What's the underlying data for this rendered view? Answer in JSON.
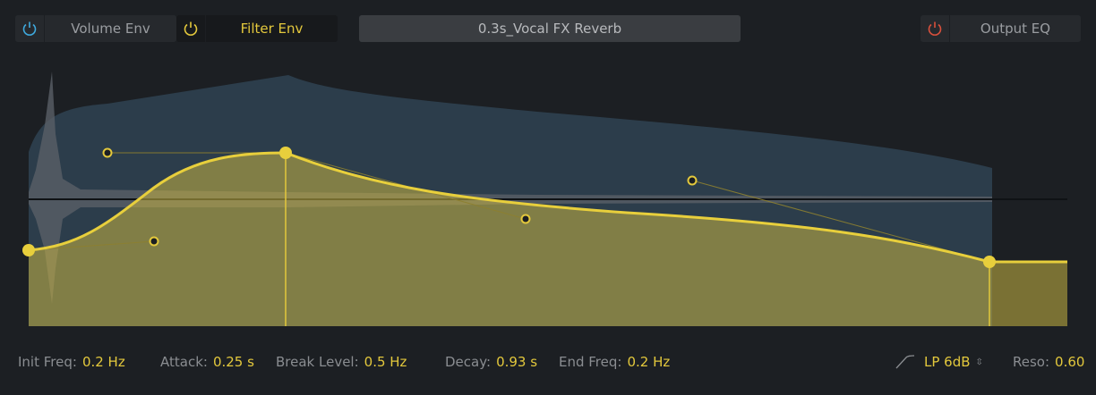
{
  "tabs": [
    {
      "label": "Volume Env",
      "icon": "power-icon",
      "color": "#3fa9dd",
      "active": false
    },
    {
      "label": "Filter Env",
      "icon": "power-icon",
      "color": "#e3c83c",
      "active": true
    }
  ],
  "preset": "0.3s_Vocal FX Reverb",
  "output_eq": {
    "label": "Output EQ",
    "icon": "power-icon",
    "color": "#d9503c"
  },
  "params": [
    {
      "label": "Init Freq:",
      "value": "0.2 Hz"
    },
    {
      "label": "Attack:",
      "value": "0.25 s"
    },
    {
      "label": "Break Level:",
      "value": "0.5 Hz"
    },
    {
      "label": "Decay:",
      "value": "0.93 s"
    },
    {
      "label": "End Freq:",
      "value": "0.2 Hz"
    }
  ],
  "filter_type": {
    "value": "LP 6dB",
    "icon": "lowpass-curve-icon"
  },
  "reso": {
    "label": "Reso:",
    "value": "0.60"
  },
  "colors": {
    "accent": "#e3c83c",
    "reverb": "#2f4352"
  }
}
